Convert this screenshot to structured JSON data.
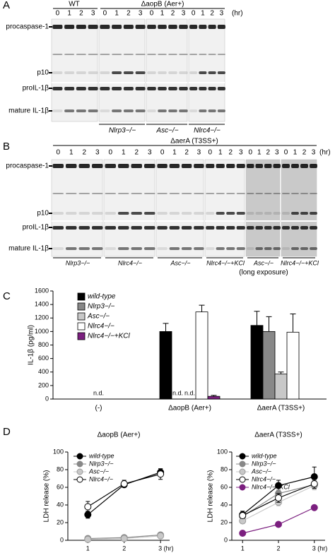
{
  "panel_labels": [
    "A",
    "B",
    "C",
    "D"
  ],
  "blot_a": {
    "headers": [
      "WT",
      "ΔaopB (Aer+)"
    ],
    "lanes": [
      "0",
      "1",
      "2",
      "3"
    ],
    "unit": "(hr)",
    "rows": [
      "procaspase-1",
      "p10",
      "proIL-1β",
      "mature IL-1β"
    ],
    "genotypes": [
      "Nlrp3−/−",
      "Asc−/−",
      "Nlrc4−/−"
    ]
  },
  "blot_b": {
    "header": "ΔaerA (T3SS+)",
    "lanes": [
      "0",
      "1",
      "2",
      "3"
    ],
    "unit": "(hr)",
    "rows": [
      "procaspase-1",
      "p10",
      "proIL-1β",
      "mature IL-1β"
    ],
    "genotypes": [
      "Nlrp3−/−",
      "Nlrc4−/−",
      "Asc−/−",
      "Nlrc4−/−+KCl",
      "Asc−/−",
      "Nlrc4−/−+KCl"
    ],
    "note": "(long exposure)"
  },
  "chart_data": [
    {
      "type": "bar",
      "ylabel": "IL-1β (pg/ml)",
      "categories": [
        "(-)",
        "ΔaopB (Aer+)",
        "ΔaerA (T3SS+)"
      ],
      "ylim": [
        0,
        1600
      ],
      "yticks": [
        0,
        200,
        400,
        600,
        800,
        1000,
        1200,
        1400,
        1600
      ],
      "legend": "top-left",
      "series": [
        {
          "name": "wild-type",
          "color": "#000000",
          "values": [
            null,
            1000,
            1090
          ],
          "errors": [
            null,
            120,
            210
          ],
          "value_labels": [
            "n.d.",
            null,
            null
          ]
        },
        {
          "name": "Nlrp3−/−",
          "color": "#888888",
          "values": [
            null,
            null,
            1000
          ],
          "errors": [
            null,
            null,
            220
          ],
          "value_labels": [
            null,
            "n.d.",
            null
          ]
        },
        {
          "name": "Asc−/−",
          "color": "#c8c8c8",
          "values": [
            null,
            null,
            370
          ],
          "errors": [
            null,
            null,
            30
          ],
          "value_labels": [
            null,
            "n.d.",
            null
          ]
        },
        {
          "name": "Nlrc4−/−",
          "color": "#ffffff",
          "values": [
            null,
            1290,
            990
          ],
          "errors": [
            null,
            100,
            270
          ],
          "value_labels": [
            null,
            null,
            null
          ]
        },
        {
          "name": "Nlrc4−/−+KCl",
          "color": "#7b1f7f",
          "values": [
            null,
            40,
            null
          ],
          "errors": [
            null,
            15,
            null
          ],
          "value_labels": [
            null,
            null,
            null
          ]
        }
      ]
    },
    {
      "type": "line",
      "title": "ΔaopB (Aer+)",
      "ylabel": "LDH release (%)",
      "x": [
        1,
        2,
        3
      ],
      "xlim": [
        0.45,
        3.25
      ],
      "xticks": [
        1,
        2,
        {
          "value": 3,
          "label": "3 (hr)"
        }
      ],
      "ylim": [
        0,
        100
      ],
      "yticks": [
        0,
        20,
        40,
        60,
        80,
        100
      ],
      "legend": "top-left",
      "series": [
        {
          "name": "wild-type",
          "color": "#000000",
          "values": [
            29,
            63,
            77
          ],
          "errors": [
            4,
            3,
            4
          ]
        },
        {
          "name": "Nlrp3−/−",
          "color": "#888888",
          "values": [
            2,
            3,
            6
          ],
          "errors": [
            1,
            1,
            1
          ]
        },
        {
          "name": "Asc−/−",
          "color": "#c8c8c8",
          "values": [
            1,
            2,
            5
          ],
          "errors": [
            1,
            1,
            1
          ]
        },
        {
          "name": "Nlrc4−/−",
          "color": "#ffffff",
          "values": [
            38,
            64,
            75
          ],
          "errors": [
            6,
            4,
            6
          ]
        }
      ]
    },
    {
      "type": "line",
      "title": "ΔaerA (T3SS+)",
      "ylabel": "LDH release (%)",
      "x": [
        1,
        2,
        3
      ],
      "xlim": [
        0.7,
        3.3
      ],
      "xticks": [
        1,
        2,
        {
          "value": 3,
          "label": "3 (hr)"
        }
      ],
      "ylim": [
        0,
        100
      ],
      "yticks": [
        0,
        20,
        40,
        60,
        80,
        100
      ],
      "legend": "top-left",
      "series": [
        {
          "name": "wild-type",
          "color": "#000000",
          "values": [
            29,
            62,
            72
          ],
          "errors": [
            4,
            6,
            11
          ]
        },
        {
          "name": "Nlrp3−/−",
          "color": "#888888",
          "values": [
            27,
            53,
            63
          ],
          "errors": [
            3,
            4,
            5
          ]
        },
        {
          "name": "Asc−/−",
          "color": "#c8c8c8",
          "values": [
            22,
            43,
            62
          ],
          "errors": [
            3,
            4,
            5
          ]
        },
        {
          "name": "Nlrc4−/−",
          "color": "#ffffff",
          "values": [
            28,
            48,
            64
          ],
          "errors": [
            3,
            5,
            5
          ]
        },
        {
          "name": "Nlrc4−/−+KCl",
          "color": "#7b1f7f",
          "values": [
            8,
            18,
            37
          ],
          "errors": [
            1,
            1,
            1
          ]
        }
      ]
    }
  ]
}
